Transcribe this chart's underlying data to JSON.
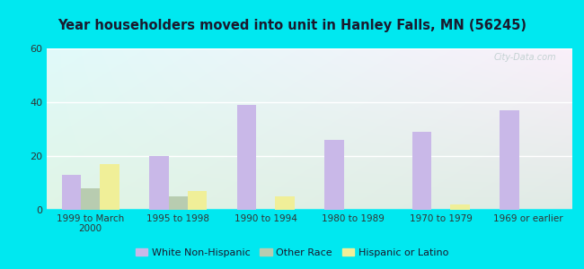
{
  "title": "Year householders moved into unit in Hanley Falls, MN (56245)",
  "categories": [
    "1999 to March\n2000",
    "1995 to 1998",
    "1990 to 1994",
    "1980 to 1989",
    "1970 to 1979",
    "1969 or earlier"
  ],
  "white_non_hispanic": [
    13,
    20,
    39,
    26,
    29,
    37
  ],
  "other_race": [
    8,
    5,
    0,
    0,
    0,
    0
  ],
  "hispanic_or_latino": [
    17,
    7,
    5,
    0,
    2,
    0
  ],
  "bar_colors": {
    "white_non_hispanic": "#c9b8e8",
    "other_race": "#b8ccb0",
    "hispanic_or_latino": "#f0ef98"
  },
  "ylim": [
    0,
    60
  ],
  "yticks": [
    0,
    20,
    40,
    60
  ],
  "background_outer": "#00e8f0",
  "legend_labels": [
    "White Non-Hispanic",
    "Other Race",
    "Hispanic or Latino"
  ],
  "watermark": "City-Data.com",
  "bar_width": 0.22
}
